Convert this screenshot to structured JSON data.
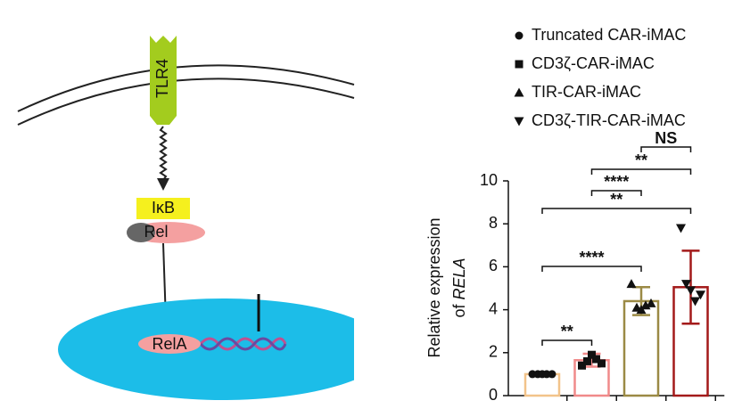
{
  "diagram": {
    "receptor": "TLR4",
    "inhibitor": "IκB",
    "complex": "Rel",
    "nuclear": "RelA"
  },
  "chart_data": {
    "type": "bar",
    "ylabel": {
      "line1": "Relative expression",
      "line2": "of",
      "gene": "RELA"
    },
    "categories": [
      null,
      null,
      null,
      null
    ],
    "legend": [
      {
        "name": "Truncated CAR-iMAC",
        "marker": "circle"
      },
      {
        "name": "CD3ζ-CAR-iMAC",
        "marker": "square"
      },
      {
        "name": "TIR-CAR-iMAC",
        "marker": "triangle-up"
      },
      {
        "name": "CD3ζ-TIR-CAR-iMAC",
        "marker": "triangle-down"
      }
    ],
    "values": [
      1.0,
      1.65,
      4.4,
      5.05
    ],
    "errors": [
      0.02,
      0.3,
      0.65,
      1.7
    ],
    "colors": [
      "#f2c38a",
      "#f08a8a",
      "#9b8a45",
      "#a31a1a"
    ],
    "points": [
      [
        1.0,
        1.0,
        1.0,
        1.0,
        1.0
      ],
      [
        1.4,
        1.6,
        1.9,
        1.7,
        1.5
      ],
      [
        5.2,
        4.1,
        4.0,
        4.2,
        4.3
      ],
      [
        7.8,
        5.2,
        4.9,
        4.4,
        4.7
      ]
    ],
    "comparisons": [
      {
        "pair": [
          0,
          1
        ],
        "label": "**"
      },
      {
        "pair": [
          0,
          2
        ],
        "label": "****"
      },
      {
        "pair": [
          0,
          3
        ],
        "label": "**"
      },
      {
        "pair": [
          1,
          2
        ],
        "label": "****"
      },
      {
        "pair": [
          1,
          3
        ],
        "label": "**"
      },
      {
        "pair": [
          2,
          3
        ],
        "label": "NS"
      }
    ],
    "ylim": [
      0,
      10
    ],
    "yticks": [
      0,
      2,
      4,
      6,
      8,
      10
    ]
  }
}
